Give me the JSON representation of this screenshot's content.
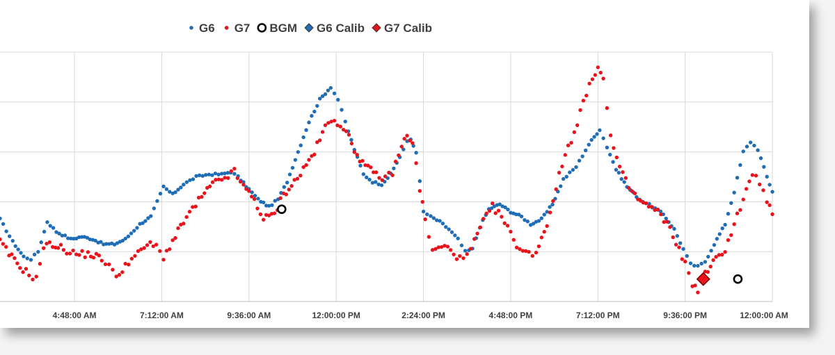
{
  "chart_data": {
    "type": "scatter",
    "title": "",
    "xlabel": "",
    "ylabel": "",
    "legend_position": "top",
    "grid": true,
    "x_tick_labels": [
      "4:48:00 AM",
      "7:12:00 AM",
      "9:36:00 AM",
      "12:00:00 PM",
      "2:24:00 PM",
      "4:48:00 PM",
      "7:12:00 PM",
      "9:36:00 PM",
      "12:00:00 AM"
    ],
    "x_unit": "hour of day",
    "xlim": [
      2.75,
      24.0
    ],
    "ylim": [
      0,
      5
    ],
    "y_tick_labels_visible": false,
    "colors": {
      "G6": "#1f6db5",
      "G7": "#e8131b",
      "BGM": "#000000",
      "G6 Calib": "#1f6db5",
      "G7 Calib": "#e8131b"
    },
    "legend": [
      {
        "name": "G6",
        "marker": "dot",
        "color": "#1f6db5"
      },
      {
        "name": "G7",
        "marker": "dot",
        "color": "#e8131b"
      },
      {
        "name": "BGM",
        "marker": "ring",
        "color": "#000000"
      },
      {
        "name": "G6 Calib",
        "marker": "diamond",
        "color": "#1f6db5"
      },
      {
        "name": "G7 Calib",
        "marker": "diamond",
        "color": "#e8131b"
      }
    ],
    "series": [
      {
        "name": "G6",
        "keypoints": [
          [
            2.75,
            1.65
          ],
          [
            3.1,
            1.2
          ],
          [
            3.4,
            0.9
          ],
          [
            3.6,
            0.85
          ],
          [
            3.8,
            1.0
          ],
          [
            4.05,
            1.6
          ],
          [
            4.3,
            1.4
          ],
          [
            4.7,
            1.25
          ],
          [
            5.0,
            1.3
          ],
          [
            5.3,
            1.25
          ],
          [
            5.6,
            1.15
          ],
          [
            5.9,
            1.15
          ],
          [
            6.2,
            1.25
          ],
          [
            6.6,
            1.55
          ],
          [
            6.9,
            1.7
          ],
          [
            7.25,
            2.3
          ],
          [
            7.5,
            2.15
          ],
          [
            7.8,
            2.35
          ],
          [
            8.15,
            2.5
          ],
          [
            8.5,
            2.55
          ],
          [
            8.85,
            2.55
          ],
          [
            9.1,
            2.6
          ],
          [
            9.3,
            2.5
          ],
          [
            9.6,
            2.25
          ],
          [
            9.85,
            2.05
          ],
          [
            10.15,
            1.9
          ],
          [
            10.4,
            2.05
          ],
          [
            10.65,
            2.4
          ],
          [
            10.95,
            3.0
          ],
          [
            11.25,
            3.6
          ],
          [
            11.55,
            4.05
          ],
          [
            11.85,
            4.3
          ],
          [
            12.05,
            4.05
          ],
          [
            12.25,
            3.6
          ],
          [
            12.5,
            3.05
          ],
          [
            12.75,
            2.55
          ],
          [
            13.0,
            2.4
          ],
          [
            13.25,
            2.35
          ],
          [
            13.5,
            2.55
          ],
          [
            13.75,
            2.9
          ],
          [
            13.95,
            3.2
          ],
          [
            14.05,
            3.25
          ],
          [
            14.2,
            3.0
          ],
          [
            14.3,
            2.4
          ],
          [
            14.4,
            1.8
          ],
          [
            14.6,
            1.7
          ],
          [
            14.85,
            1.6
          ],
          [
            15.1,
            1.45
          ],
          [
            15.35,
            1.25
          ],
          [
            15.55,
            1.0
          ],
          [
            15.75,
            1.05
          ],
          [
            15.95,
            1.5
          ],
          [
            16.2,
            1.85
          ],
          [
            16.5,
            1.95
          ],
          [
            16.8,
            1.8
          ],
          [
            17.1,
            1.7
          ],
          [
            17.35,
            1.55
          ],
          [
            17.65,
            1.65
          ],
          [
            17.95,
            1.95
          ],
          [
            18.25,
            2.45
          ],
          [
            18.6,
            2.7
          ],
          [
            18.95,
            3.15
          ],
          [
            19.25,
            3.45
          ],
          [
            19.45,
            3.1
          ],
          [
            19.7,
            2.65
          ],
          [
            20.0,
            2.3
          ],
          [
            20.35,
            2.05
          ],
          [
            20.7,
            1.9
          ],
          [
            21.0,
            1.75
          ],
          [
            21.3,
            1.45
          ],
          [
            21.55,
            1.05
          ],
          [
            21.75,
            0.75
          ],
          [
            21.95,
            0.7
          ],
          [
            22.15,
            0.8
          ],
          [
            22.4,
            1.15
          ],
          [
            22.7,
            1.55
          ],
          [
            22.95,
            2.2
          ],
          [
            23.2,
            3.0
          ],
          [
            23.4,
            3.2
          ],
          [
            23.6,
            3.05
          ],
          [
            23.85,
            2.5
          ],
          [
            24.0,
            2.2
          ]
        ]
      },
      {
        "name": "G7",
        "keypoints": [
          [
            2.75,
            1.2
          ],
          [
            3.0,
            0.95
          ],
          [
            3.3,
            0.7
          ],
          [
            3.55,
            0.55
          ],
          [
            3.75,
            0.45
          ],
          [
            3.95,
            1.1
          ],
          [
            4.2,
            1.15
          ],
          [
            4.5,
            1.05
          ],
          [
            4.85,
            0.95
          ],
          [
            5.25,
            0.95
          ],
          [
            5.55,
            0.85
          ],
          [
            5.75,
            0.75
          ],
          [
            5.95,
            0.45
          ],
          [
            6.2,
            0.75
          ],
          [
            6.55,
            0.95
          ],
          [
            6.8,
            1.15
          ],
          [
            7.05,
            1.1
          ],
          [
            7.25,
            0.9
          ],
          [
            7.5,
            1.2
          ],
          [
            7.8,
            1.6
          ],
          [
            8.05,
            1.85
          ],
          [
            8.3,
            2.1
          ],
          [
            8.6,
            2.35
          ],
          [
            8.85,
            2.45
          ],
          [
            9.2,
            2.6
          ],
          [
            9.45,
            2.3
          ],
          [
            9.75,
            2.05
          ],
          [
            10.0,
            1.65
          ],
          [
            10.3,
            1.75
          ],
          [
            10.55,
            2.15
          ],
          [
            10.85,
            2.4
          ],
          [
            11.1,
            2.65
          ],
          [
            11.4,
            3.0
          ],
          [
            11.7,
            3.5
          ],
          [
            11.95,
            3.65
          ],
          [
            12.2,
            3.5
          ],
          [
            12.5,
            3.05
          ],
          [
            12.8,
            2.7
          ],
          [
            13.1,
            2.55
          ],
          [
            13.35,
            2.45
          ],
          [
            13.55,
            2.6
          ],
          [
            13.8,
            3.1
          ],
          [
            13.95,
            3.35
          ],
          [
            14.1,
            3.2
          ],
          [
            14.3,
            2.25
          ],
          [
            14.45,
            1.65
          ],
          [
            14.65,
            1.0
          ],
          [
            14.9,
            1.1
          ],
          [
            15.15,
            1.05
          ],
          [
            15.4,
            0.85
          ],
          [
            15.6,
            0.9
          ],
          [
            15.8,
            1.2
          ],
          [
            16.05,
            1.6
          ],
          [
            16.3,
            1.9
          ],
          [
            16.55,
            1.7
          ],
          [
            16.8,
            1.35
          ],
          [
            17.05,
            1.05
          ],
          [
            17.3,
            0.95
          ],
          [
            17.5,
            1.0
          ],
          [
            17.8,
            1.55
          ],
          [
            18.05,
            2.3
          ],
          [
            18.3,
            2.95
          ],
          [
            18.55,
            3.4
          ],
          [
            18.8,
            4.0
          ],
          [
            19.05,
            4.45
          ],
          [
            19.2,
            4.75
          ],
          [
            19.35,
            4.45
          ],
          [
            19.55,
            3.3
          ],
          [
            19.8,
            2.65
          ],
          [
            20.05,
            2.3
          ],
          [
            20.3,
            2.05
          ],
          [
            20.6,
            1.9
          ],
          [
            20.85,
            1.8
          ],
          [
            21.1,
            1.55
          ],
          [
            21.35,
            1.2
          ],
          [
            21.6,
            0.75
          ],
          [
            21.8,
            0.35
          ],
          [
            21.95,
            0.25
          ],
          [
            22.15,
            0.55
          ],
          [
            22.45,
            0.85
          ],
          [
            22.7,
            1.05
          ],
          [
            22.95,
            1.55
          ],
          [
            23.2,
            2.05
          ],
          [
            23.45,
            2.55
          ],
          [
            23.65,
            2.4
          ],
          [
            23.85,
            2.0
          ],
          [
            24.0,
            1.75
          ]
        ]
      }
    ],
    "bgm_points": [
      [
        10.5,
        1.85
      ],
      [
        23.05,
        0.45
      ]
    ],
    "g7_calib_points": [
      [
        22.1,
        0.45
      ]
    ],
    "g6_calib_points": []
  }
}
